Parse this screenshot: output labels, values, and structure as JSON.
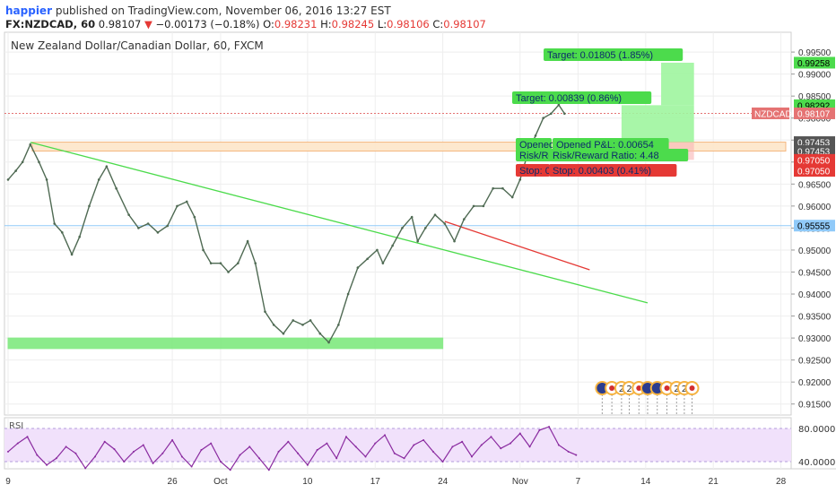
{
  "header": {
    "author": "happier",
    "published_text": "published on TradingView.com, November 06, 2016 13:27 EST",
    "symbol": "FX:NZDCAD, 60",
    "last_price": "0.98107",
    "down_arrow": "▼",
    "change": "−0.00173 (−0.18%)",
    "o_label": "O:",
    "o_value": "0.98231",
    "h_label": "H:",
    "h_value": "0.98245",
    "l_label": "L:",
    "l_value": "0.98106",
    "c_label": "C:",
    "c_value": "0.98107"
  },
  "main_title": "New Zealand Dollar/Canadian Dollar, 60, FXCM",
  "chart_data": {
    "type": "line",
    "ylim": [
      0.9125,
      0.9995
    ],
    "y_ticks": [
      "0.99500",
      "0.99000",
      "0.98500",
      "0.98000",
      "0.97500",
      "0.97000",
      "0.96500",
      "0.96000",
      "0.95500",
      "0.95000",
      "0.94500",
      "0.94000",
      "0.93500",
      "0.93000",
      "0.92500",
      "0.92000",
      "0.91500"
    ],
    "x_ticks": [
      {
        "label": "9",
        "t": 0
      },
      {
        "label": "26",
        "t": 17
      },
      {
        "label": "Oct",
        "t": 22
      },
      {
        "label": "10",
        "t": 31
      },
      {
        "label": "17",
        "t": 38
      },
      {
        "label": "24",
        "t": 45
      },
      {
        "label": "Nov",
        "t": 53
      },
      {
        "label": "7",
        "t": 59
      },
      {
        "label": "14",
        "t": 66
      },
      {
        "label": "21",
        "t": 73
      },
      {
        "label": "28",
        "t": 80
      }
    ],
    "price_points": [
      [
        0,
        0.966
      ],
      [
        0.8,
        0.968
      ],
      [
        1.5,
        0.97
      ],
      [
        2.3,
        0.974
      ],
      [
        3.2,
        0.97
      ],
      [
        4,
        0.966
      ],
      [
        4.8,
        0.956
      ],
      [
        5.6,
        0.954
      ],
      [
        6.6,
        0.949
      ],
      [
        7.4,
        0.953
      ],
      [
        8.4,
        0.96
      ],
      [
        9.4,
        0.966
      ],
      [
        10.2,
        0.969
      ],
      [
        11.2,
        0.964
      ],
      [
        12.5,
        0.958
      ],
      [
        13.5,
        0.955
      ],
      [
        14.5,
        0.956
      ],
      [
        15.5,
        0.954
      ],
      [
        16.5,
        0.9555
      ],
      [
        17.5,
        0.96
      ],
      [
        18.5,
        0.961
      ],
      [
        19.3,
        0.9575
      ],
      [
        20.2,
        0.95
      ],
      [
        21,
        0.947
      ],
      [
        22,
        0.947
      ],
      [
        22.8,
        0.945
      ],
      [
        23.8,
        0.947
      ],
      [
        24.8,
        0.952
      ],
      [
        25.6,
        0.947
      ],
      [
        26.6,
        0.936
      ],
      [
        27.5,
        0.933
      ],
      [
        28.5,
        0.931
      ],
      [
        29.5,
        0.934
      ],
      [
        30.5,
        0.933
      ],
      [
        31.3,
        0.934
      ],
      [
        32.3,
        0.931
      ],
      [
        33.2,
        0.929
      ],
      [
        34.2,
        0.933
      ],
      [
        35.2,
        0.94
      ],
      [
        36.2,
        0.946
      ],
      [
        37.2,
        0.948
      ],
      [
        38.2,
        0.95
      ],
      [
        38.8,
        0.947
      ],
      [
        39.8,
        0.951
      ],
      [
        40.8,
        0.955
      ],
      [
        41.8,
        0.9575
      ],
      [
        42.4,
        0.952
      ],
      [
        43.2,
        0.955
      ],
      [
        44.2,
        0.958
      ],
      [
        45.2,
        0.956
      ],
      [
        46.2,
        0.952
      ],
      [
        47.2,
        0.957
      ],
      [
        48.2,
        0.96
      ],
      [
        49.2,
        0.96
      ],
      [
        50.2,
        0.964
      ],
      [
        51.2,
        0.964
      ],
      [
        52.2,
        0.962
      ],
      [
        53,
        0.966
      ],
      [
        53.8,
        0.972
      ],
      [
        54.6,
        0.976
      ],
      [
        55.4,
        0.98
      ],
      [
        56.2,
        0.981
      ],
      [
        57,
        0.983
      ],
      [
        57.6,
        0.981
      ]
    ],
    "rsi_points": [
      [
        0,
        52
      ],
      [
        1,
        62
      ],
      [
        2,
        70
      ],
      [
        3,
        48
      ],
      [
        4,
        36
      ],
      [
        5,
        44
      ],
      [
        6,
        58
      ],
      [
        7,
        50
      ],
      [
        8,
        32
      ],
      [
        9,
        46
      ],
      [
        10,
        64
      ],
      [
        11,
        55
      ],
      [
        12,
        40
      ],
      [
        13,
        52
      ],
      [
        14,
        60
      ],
      [
        15,
        38
      ],
      [
        16,
        50
      ],
      [
        17,
        66
      ],
      [
        18,
        46
      ],
      [
        19,
        34
      ],
      [
        20,
        54
      ],
      [
        21,
        62
      ],
      [
        22,
        40
      ],
      [
        23,
        30
      ],
      [
        24,
        48
      ],
      [
        25,
        58
      ],
      [
        26,
        44
      ],
      [
        27,
        30
      ],
      [
        28,
        52
      ],
      [
        29,
        64
      ],
      [
        30,
        50
      ],
      [
        31,
        36
      ],
      [
        32,
        54
      ],
      [
        33,
        62
      ],
      [
        34,
        44
      ],
      [
        35,
        70
      ],
      [
        36,
        58
      ],
      [
        37,
        46
      ],
      [
        38,
        62
      ],
      [
        39,
        72
      ],
      [
        40,
        50
      ],
      [
        41,
        44
      ],
      [
        42,
        60
      ],
      [
        43,
        66
      ],
      [
        44,
        52
      ],
      [
        45,
        40
      ],
      [
        46,
        58
      ],
      [
        47,
        64
      ],
      [
        48,
        46
      ],
      [
        49,
        60
      ],
      [
        50,
        70
      ],
      [
        51,
        56
      ],
      [
        52,
        62
      ],
      [
        53,
        74
      ],
      [
        54,
        58
      ],
      [
        55,
        78
      ],
      [
        56,
        82
      ],
      [
        57,
        60
      ],
      [
        58,
        52
      ],
      [
        58.8,
        48
      ]
    ],
    "rsi_levels": {
      "upper": 80,
      "lower": 40,
      "upper_label": "80.0000",
      "lower_label": "40.0000"
    },
    "rsi_label": "RSI",
    "horizontal_lines": [
      {
        "price": 0.98107,
        "style": "dotted",
        "color": "#e57373"
      },
      {
        "price": 0.95555,
        "style": "solid",
        "color": "#90caf9"
      }
    ],
    "zones": [
      {
        "t0": 2.5,
        "t1": 80.5,
        "p0": 0.97453,
        "p1": 0.9725,
        "color": "#fde7cc",
        "border": "#f4b47a"
      },
      {
        "t0": 0,
        "t1": 45,
        "p0": 0.93,
        "p1": 0.9276,
        "color": "#85ea85",
        "border": "#85ea85"
      }
    ],
    "trendlines": [
      {
        "t0": 2.3,
        "p0": 0.9745,
        "t1": 66.2,
        "p1": 0.938,
        "color": "#4cdb4c"
      },
      {
        "t0": 45.2,
        "p0": 0.9565,
        "t1": 60.2,
        "p1": 0.9455,
        "color": "#e53935"
      }
    ],
    "projection": {
      "small": {
        "t0": 63.5,
        "t1": 71,
        "entry": 0.97453,
        "target": 0.98292,
        "stop": 0.9705
      },
      "big": {
        "t0": 67.6,
        "t1": 71,
        "target": 0.99258
      },
      "labels": {
        "target_small": "Target: 0.00839 (0.86%)",
        "target_big": "Target: 0.01805 (1.85%)",
        "open_a": "Opened P&L: 0.00654",
        "open_b": "Opened P&L: 0.00654",
        "rr_a": "Risk/Reward Ratio: 4.48",
        "rr_b": "Risk/Reward Ratio: 4.48",
        "stop_a": "Stop: 0.00403 (0.41%)",
        "stop_b": "Stop: 0.00403 (0.41%)"
      }
    },
    "price_labels": [
      {
        "text": "0.99258",
        "price": 0.99258,
        "bg": "#4cdb4c",
        "fg": "#000000"
      },
      {
        "text": "0.98292",
        "price": 0.98292,
        "bg": "#4cdb4c",
        "fg": "#000000"
      },
      {
        "text": "0.98107",
        "price": 0.98107,
        "bg": "#e57373",
        "fg": "#ffffff"
      },
      {
        "text": "0.97453",
        "price": 0.97453,
        "bg": "#555555",
        "fg": "#ffffff"
      },
      {
        "text": "0.97453",
        "price": 0.9725,
        "bg": "#555555",
        "fg": "#ffffff"
      },
      {
        "text": "0.97050",
        "price": 0.9705,
        "bg": "#e53935",
        "fg": "#ffffff"
      },
      {
        "text": "0.97050",
        "price": 0.968,
        "bg": "#e53935",
        "fg": "#ffffff"
      },
      {
        "text": "0.95555",
        "price": 0.95555,
        "bg": "#90caf9",
        "fg": "#000000"
      }
    ],
    "symbol_tag": {
      "text": "NZDCAD",
      "bg": "#e57373",
      "fg": "#ffffff"
    },
    "events": [
      {
        "t": 61.5,
        "kind": "flag-au"
      },
      {
        "t": 62.5,
        "kind": "flag-ca"
      },
      {
        "t": 63.5,
        "kind": "text",
        "text": "2"
      },
      {
        "t": 64.3,
        "kind": "text",
        "text": "2"
      },
      {
        "t": 65.3,
        "kind": "flag-ca"
      },
      {
        "t": 66.2,
        "kind": "flag-au"
      },
      {
        "t": 67.2,
        "kind": "flag-au"
      },
      {
        "t": 68.2,
        "kind": "flag-ca"
      },
      {
        "t": 69.2,
        "kind": "text",
        "text": "2"
      },
      {
        "t": 70.0,
        "kind": "text",
        "text": "2"
      },
      {
        "t": 70.8,
        "kind": "flag-ca"
      }
    ]
  },
  "colors": {
    "price_line": "#4f6a53",
    "rsi_line": "#8a2ba0",
    "rsi_band": "#f1e1fb",
    "grid": "#eeeeee",
    "axis_text": "#333333"
  }
}
